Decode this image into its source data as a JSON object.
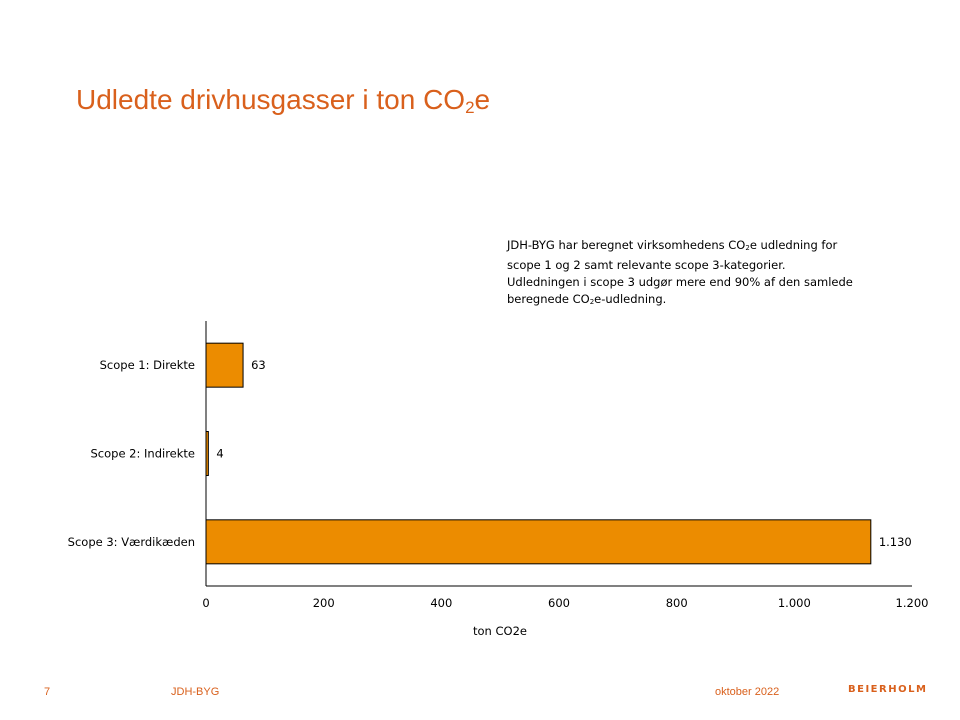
{
  "slide": {
    "title_main": "Udledte drivhusgasser i ton CO",
    "title_sub": "2",
    "title_end": "e",
    "note": {
      "l1a": "JDH-BYG  har beregnet virksomhedens CO",
      "l1s": "2",
      "l1b": "e udledning for",
      "l2": "scope 1 og 2 samt relevante scope 3-kategorier.",
      "l3": "Udledningen i scope 3 udgør mere end 90% af den samlede",
      "l4a": "beregnede CO",
      "l4s": "2",
      "l4b": "e-udledning."
    }
  },
  "footer": {
    "page": "7",
    "company": "JDH-BYG",
    "date": "oktober 2022",
    "logo": "BEIERHOLM"
  },
  "colors": {
    "accent": "#d9601c",
    "bar": "#ec8c00"
  },
  "chart_data": {
    "type": "bar",
    "orientation": "horizontal",
    "categories": [
      "Scope 1: Direkte",
      "Scope 2: Indirekte",
      "Scope 3: Værdikæden"
    ],
    "values": [
      63,
      4,
      1130
    ],
    "value_labels": [
      "63",
      "4",
      "1.130"
    ],
    "xlabel": "ton CO2e",
    "xlim": [
      0,
      1200
    ],
    "xticks": [
      0,
      200,
      400,
      600,
      800,
      1000,
      1200
    ],
    "xtick_labels": [
      "0",
      "200",
      "400",
      "600",
      "800",
      "1.000",
      "1.200"
    ],
    "grid": false,
    "legend": "none"
  }
}
